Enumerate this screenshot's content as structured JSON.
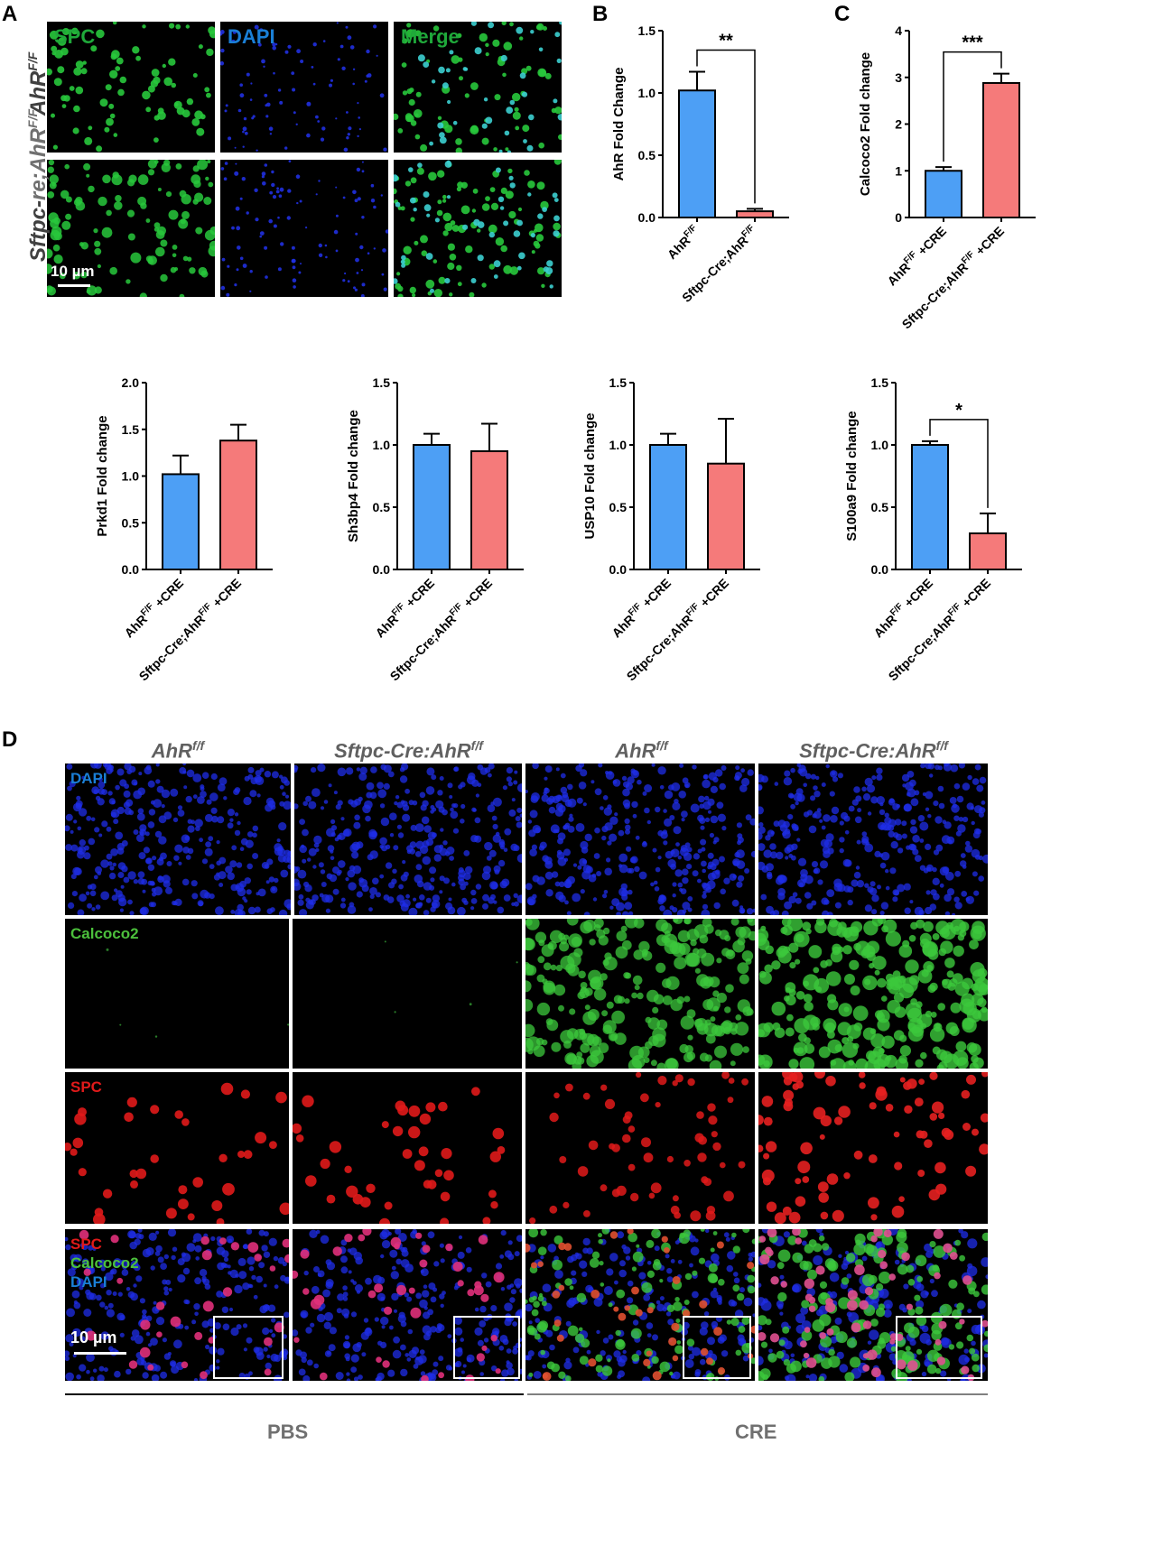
{
  "panels": {
    "A": "A",
    "B": "B",
    "C": "C",
    "D": "D"
  },
  "panel_a": {
    "channels": [
      "SPC",
      "DAPI",
      "Merge"
    ],
    "row_labels": [
      "AhR",
      "Sftpc-"
    ],
    "row_label_sup": "F/F",
    "row_label_fragment": "re;AhR",
    "scale_bar": "10 µm",
    "colors": {
      "spc": "#1fa83a",
      "dapi": "#1a7fd6",
      "merge": "#1fa83a"
    }
  },
  "panel_d": {
    "col_labels": [
      "AhR",
      "Sftpc-Cre:AhR",
      "AhR",
      "Sftpc-Cre:AhR"
    ],
    "col_sup": "f/f",
    "rows": [
      "DAPI",
      "Calcoco2",
      "SPC"
    ],
    "merge_labels": [
      "SPC",
      "Calcoco2",
      "DAPI"
    ],
    "scale_bar": "10 µm",
    "group_labels": [
      "PBS",
      "CRE"
    ],
    "colors": {
      "dapi": "#1a7fd6",
      "calcoco2": "#4cc03c",
      "spc": "#e01a1a"
    }
  },
  "chart_data": [
    {
      "type": "bar",
      "panel": "B",
      "categories": [
        "AhR^F/F",
        "Sftpc-Cre;AhR^F/F"
      ],
      "values": [
        1.02,
        0.05
      ],
      "errors": [
        0.15,
        0.02
      ],
      "ylabel": "AhR Fold Change",
      "ylim": [
        0,
        1.5
      ],
      "yticks": [
        "0.0",
        "0.5",
        "1.0",
        "1.5"
      ],
      "significance": "**",
      "colors": [
        "#4d9ff5",
        "#f57a7a"
      ]
    },
    {
      "type": "bar",
      "panel": "C",
      "categories": [
        "AhR^F/F +CRE",
        "Sftpc-Cre;AhR^F/F +CRE"
      ],
      "values": [
        1.0,
        2.88
      ],
      "errors": [
        0.08,
        0.2
      ],
      "ylabel": "Calcoco2 Fold change",
      "ylim": [
        0,
        4
      ],
      "yticks": [
        "0",
        "1",
        "2",
        "3",
        "4"
      ],
      "significance": "***",
      "colors": [
        "#4d9ff5",
        "#f57a7a"
      ]
    },
    {
      "type": "bar",
      "categories": [
        "AhR^F/F +CRE",
        "Sftpc-Cre;AhR^F/F +CRE"
      ],
      "values": [
        1.02,
        1.38
      ],
      "errors": [
        0.2,
        0.17
      ],
      "ylabel": "Prkd1 Fold change",
      "ylim": [
        0,
        2.0
      ],
      "yticks": [
        "0.0",
        "0.5",
        "1.0",
        "1.5",
        "2.0"
      ],
      "significance": "",
      "colors": [
        "#4d9ff5",
        "#f57a7a"
      ]
    },
    {
      "type": "bar",
      "categories": [
        "AhR^F/F +CRE",
        "Sftpc-Cre;AhR^F/F +CRE"
      ],
      "values": [
        1.0,
        0.95
      ],
      "errors": [
        0.09,
        0.22
      ],
      "ylabel": "Sh3bp4 Fold change",
      "ylim": [
        0,
        1.5
      ],
      "yticks": [
        "0.0",
        "0.5",
        "1.0",
        "1.5"
      ],
      "significance": "",
      "colors": [
        "#4d9ff5",
        "#f57a7a"
      ]
    },
    {
      "type": "bar",
      "categories": [
        "AhR^F/F +CRE",
        "Sftpc-Cre;AhR^F/F +CRE"
      ],
      "values": [
        1.0,
        0.85
      ],
      "errors": [
        0.09,
        0.36
      ],
      "ylabel": "USP10 Fold change",
      "ylim": [
        0,
        1.5
      ],
      "yticks": [
        "0.0",
        "0.5",
        "1.0",
        "1.5"
      ],
      "significance": "",
      "colors": [
        "#4d9ff5",
        "#f57a7a"
      ]
    },
    {
      "type": "bar",
      "categories": [
        "AhR^F/F +CRE",
        "Sftpc-Cre;AhR^F/F +CRE"
      ],
      "values": [
        1.0,
        0.29
      ],
      "errors": [
        0.03,
        0.16
      ],
      "ylabel": "S100a9 Fold change",
      "ylim": [
        0,
        1.5
      ],
      "yticks": [
        "0.0",
        "0.5",
        "1.0",
        "1.5"
      ],
      "significance": "*",
      "colors": [
        "#4d9ff5",
        "#f57a7a"
      ]
    }
  ]
}
